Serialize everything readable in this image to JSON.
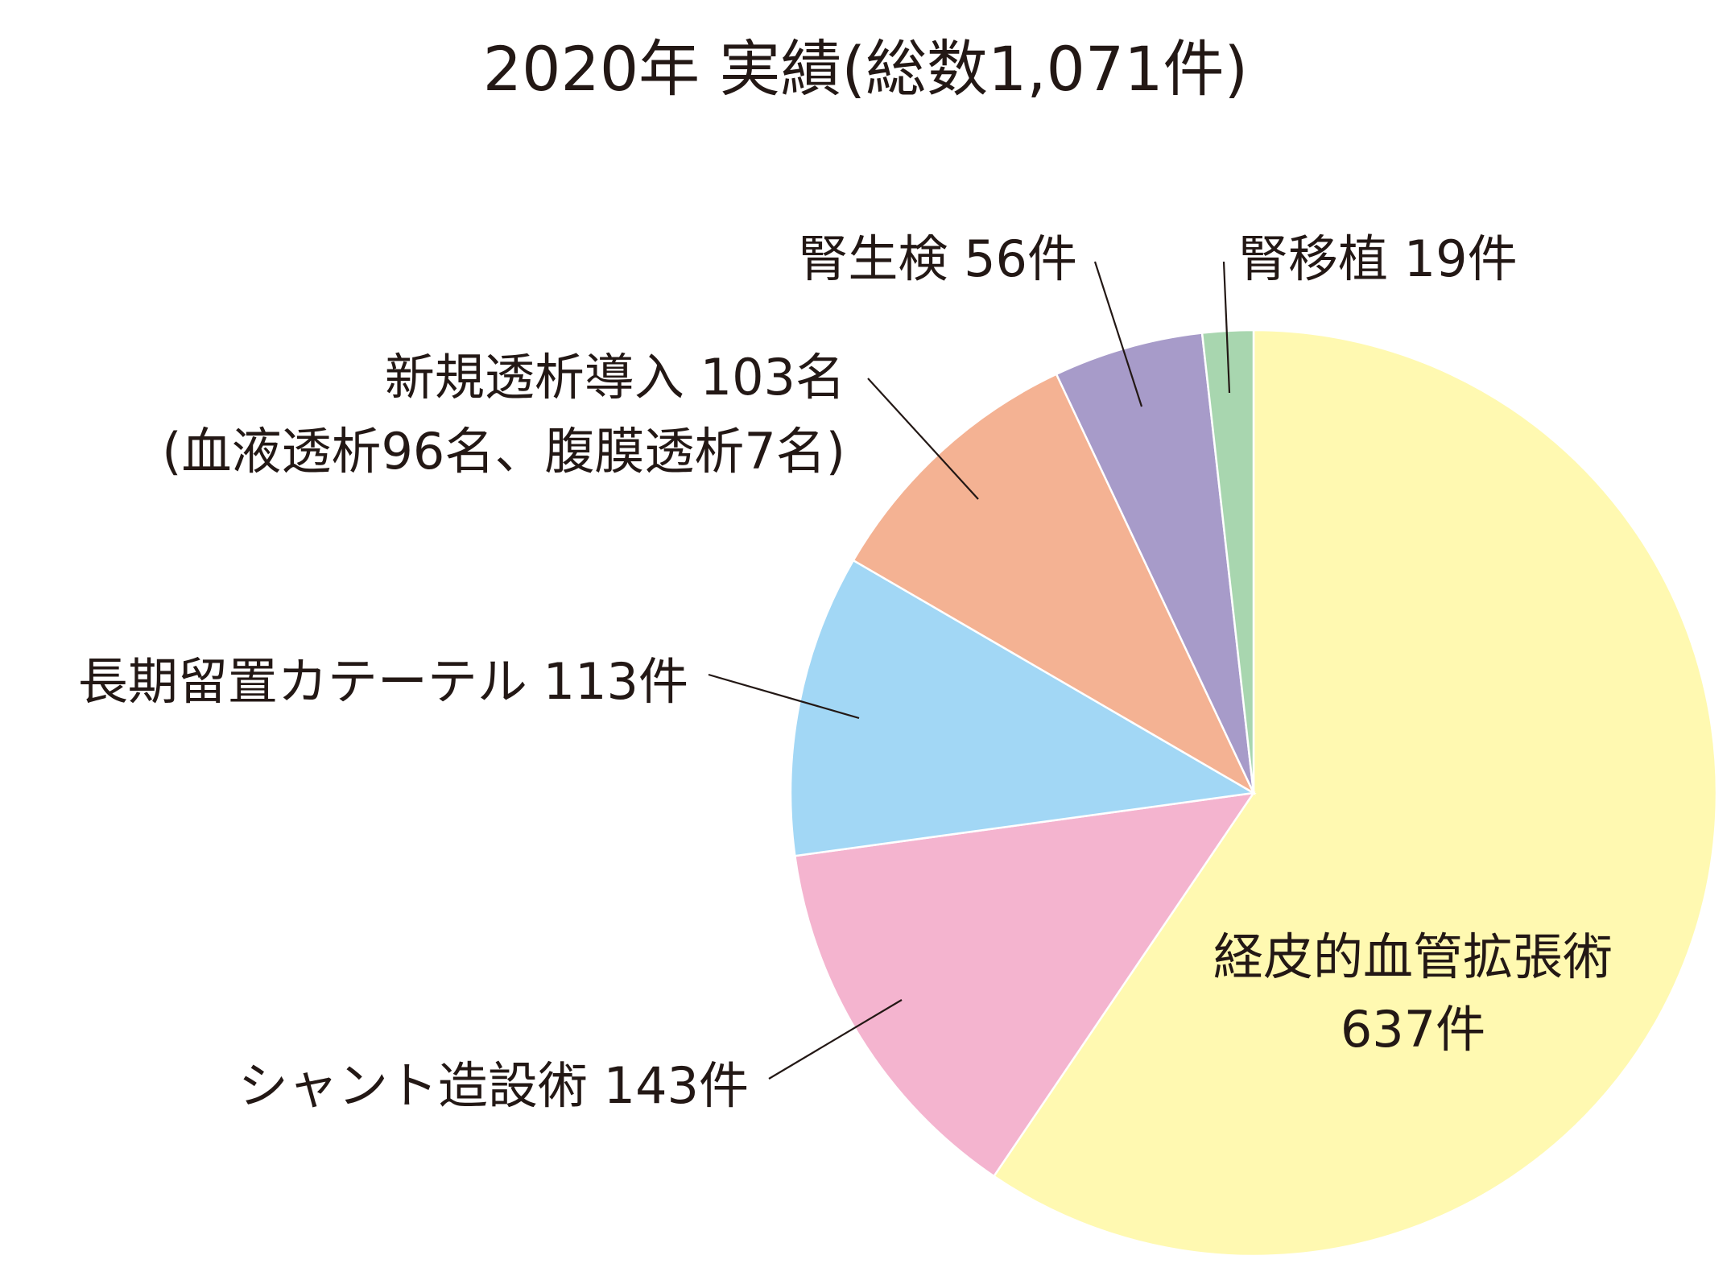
{
  "chart_data": {
    "type": "pie",
    "title": "2020年 実績(総数1,071件)",
    "start_angle_deg": 0,
    "direction": "clockwise",
    "slices": [
      {
        "label": "経皮的血管拡張術",
        "value_text": "637件",
        "value": 637,
        "color": "#FFF9B1"
      },
      {
        "label": "シャント造設術",
        "value_text": "143件",
        "value": 143,
        "color": "#F4B4CF"
      },
      {
        "label": "長期留置カテーテル",
        "value_text": "113件",
        "value": 113,
        "color": "#A2D7F5"
      },
      {
        "label": "新規透析導入",
        "value_text": "103名",
        "sublabel": "(血液透析96名、腹膜透析7名)",
        "value": 103,
        "color": "#F4B293"
      },
      {
        "label": "腎生検",
        "value_text": "56件",
        "value": 56,
        "color": "#A79BC9"
      },
      {
        "label": "腎移植",
        "value_text": "19件",
        "value": 19,
        "color": "#A8D6AF"
      }
    ]
  }
}
